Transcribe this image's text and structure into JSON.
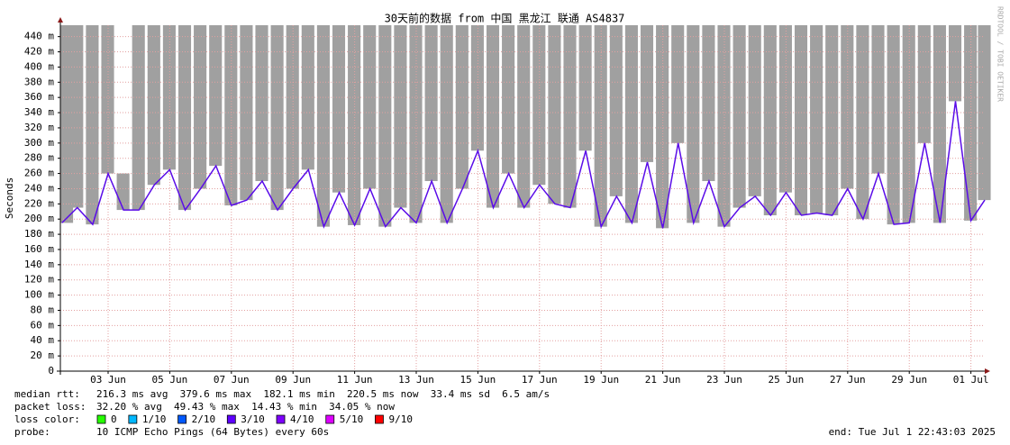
{
  "chart_data": {
    "type": "line",
    "title": "30天前的数据 from 中国 黑龙江 联通 AS4837",
    "y_label": "Seconds",
    "side_text": "RRDTOOL / TOBI OETIKER",
    "xlim": [
      1.95,
      31.95
    ],
    "xticks": [
      {
        "value": 3.5,
        "label": "03 Jun"
      },
      {
        "value": 5.5,
        "label": "05 Jun"
      },
      {
        "value": 7.5,
        "label": "07 Jun"
      },
      {
        "value": 9.5,
        "label": "09 Jun"
      },
      {
        "value": 11.5,
        "label": "11 Jun"
      },
      {
        "value": 13.5,
        "label": "13 Jun"
      },
      {
        "value": 15.5,
        "label": "15 Jun"
      },
      {
        "value": 17.5,
        "label": "17 Jun"
      },
      {
        "value": 19.5,
        "label": "19 Jun"
      },
      {
        "value": 21.5,
        "label": "21 Jun"
      },
      {
        "value": 23.5,
        "label": "23 Jun"
      },
      {
        "value": 25.5,
        "label": "25 Jun"
      },
      {
        "value": 27.5,
        "label": "27 Jun"
      },
      {
        "value": 29.5,
        "label": "29 Jun"
      },
      {
        "value": 31.5,
        "label": "01 Jul"
      }
    ],
    "ylim": [
      0,
      0.455
    ],
    "yticks": [
      {
        "value": 0,
        "label": "0"
      },
      {
        "value": 0.02,
        "label": "20 m"
      },
      {
        "value": 0.04,
        "label": "40 m"
      },
      {
        "value": 0.06,
        "label": "60 m"
      },
      {
        "value": 0.08,
        "label": "80 m"
      },
      {
        "value": 0.1,
        "label": "100 m"
      },
      {
        "value": 0.12,
        "label": "120 m"
      },
      {
        "value": 0.14,
        "label": "140 m"
      },
      {
        "value": 0.16,
        "label": "160 m"
      },
      {
        "value": 0.18,
        "label": "180 m"
      },
      {
        "value": 0.2,
        "label": "200 m"
      },
      {
        "value": 0.22,
        "label": "220 m"
      },
      {
        "value": 0.24,
        "label": "240 m"
      },
      {
        "value": 0.26,
        "label": "260 m"
      },
      {
        "value": 0.28,
        "label": "280 m"
      },
      {
        "value": 0.3,
        "label": "300 m"
      },
      {
        "value": 0.32,
        "label": "320 m"
      },
      {
        "value": 0.34,
        "label": "340 m"
      },
      {
        "value": 0.36,
        "label": "360 m"
      },
      {
        "value": 0.38,
        "label": "380 m"
      },
      {
        "value": 0.4,
        "label": "400 m"
      },
      {
        "value": 0.42,
        "label": "420 m"
      },
      {
        "value": 0.44,
        "label": "440 m"
      }
    ],
    "grid": true,
    "smoke_color": "#a0a0a0",
    "x": [
      2,
      2.5,
      3,
      3.5,
      4,
      4.5,
      5,
      5.5,
      6,
      6.5,
      7,
      7.5,
      8,
      8.5,
      9,
      9.5,
      10,
      10.5,
      11,
      11.5,
      12,
      12.5,
      13,
      13.5,
      14,
      14.5,
      15,
      15.5,
      16,
      16.5,
      17,
      17.5,
      18,
      18.5,
      19,
      19.5,
      20,
      20.5,
      21,
      21.5,
      22,
      22.5,
      23,
      23.5,
      24,
      24.5,
      25,
      25.5,
      26,
      26.5,
      27,
      27.5,
      28,
      28.5,
      29,
      29.5,
      30,
      30.5,
      31,
      31.5,
      31.95
    ],
    "smoke_high": [
      0.455,
      0.455,
      0.455,
      0.455,
      0.26,
      0.455,
      0.455,
      0.455,
      0.455,
      0.455,
      0.455,
      0.455,
      0.455,
      0.455,
      0.455,
      0.455,
      0.455,
      0.455,
      0.455,
      0.455,
      0.455,
      0.455,
      0.455,
      0.455,
      0.455,
      0.455,
      0.455,
      0.455,
      0.455,
      0.455,
      0.455,
      0.455,
      0.455,
      0.455,
      0.455,
      0.455,
      0.455,
      0.455,
      0.455,
      0.455,
      0.455,
      0.455,
      0.455,
      0.455,
      0.455,
      0.455,
      0.455,
      0.455,
      0.455,
      0.455,
      0.455,
      0.455,
      0.455,
      0.455,
      0.455,
      0.455,
      0.455,
      0.455,
      0.455,
      0.455,
      0.455
    ],
    "series": [
      {
        "color": "#5a0ce8",
        "values": [
          0.195,
          0.215,
          0.193,
          0.26,
          0.212,
          0.212,
          0.245,
          0.265,
          0.212,
          0.24,
          0.27,
          0.218,
          0.225,
          0.25,
          0.212,
          0.24,
          0.265,
          0.19,
          0.235,
          0.192,
          0.24,
          0.19,
          0.215,
          0.195,
          0.25,
          0.195,
          0.24,
          0.29,
          0.215,
          0.26,
          0.215,
          0.245,
          0.22,
          0.215,
          0.29,
          0.19,
          0.23,
          0.195,
          0.275,
          0.188,
          0.3,
          0.195,
          0.25,
          0.19,
          0.215,
          0.23,
          0.205,
          0.235,
          0.205,
          0.208,
          0.205,
          0.24,
          0.2,
          0.26,
          0.193,
          0.195,
          0.3,
          0.195,
          0.355,
          0.198,
          0.225
        ]
      }
    ],
    "stats": [
      {
        "label": "median rtt:",
        "items": [
          "216.3 ms avg",
          "379.6 ms max",
          "182.1 ms min",
          "220.5 ms now",
          "33.4 ms sd",
          "6.5   am/s"
        ]
      },
      {
        "label": "packet loss:",
        "items": [
          "32.20 % avg",
          "49.43 % max",
          "14.43 % min",
          "34.05 % now"
        ]
      }
    ],
    "loss_legend_label": "loss color:",
    "loss_legend": [
      {
        "name": "0",
        "color": "#26ff00"
      },
      {
        "name": "1/10",
        "color": "#00b8ff"
      },
      {
        "name": "2/10",
        "color": "#0059ff"
      },
      {
        "name": "3/10",
        "color": "#5e00ff"
      },
      {
        "name": "4/10",
        "color": "#7e00ff"
      },
      {
        "name": "5/10",
        "color": "#dd00ff"
      },
      {
        "name": "9/10",
        "color": "#ff0000"
      }
    ],
    "probe_label": "probe:",
    "probe": "10 ICMP Echo Pings (64 Bytes) every 60s",
    "end": "end: Tue Jul  1 22:43:03 2025"
  }
}
